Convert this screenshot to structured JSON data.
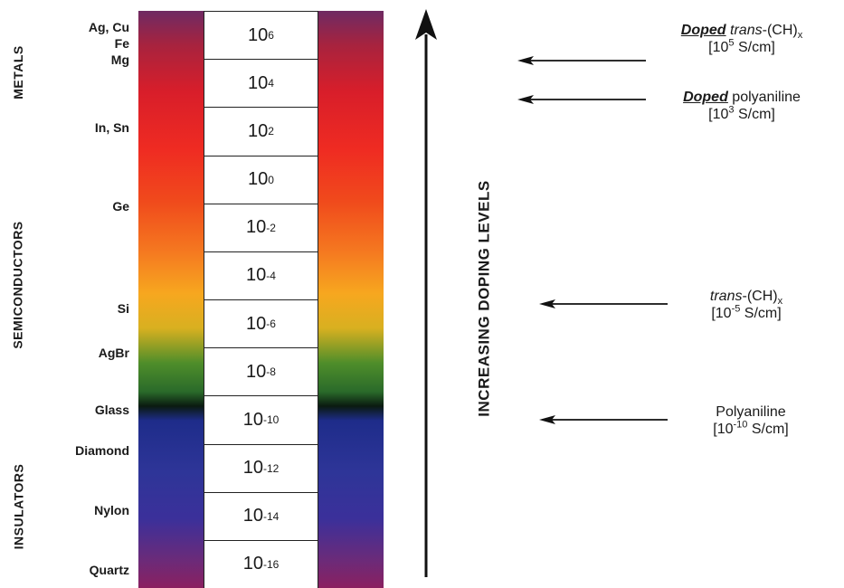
{
  "categories": [
    {
      "id": "metals",
      "label": "METALS"
    },
    {
      "id": "semiconductors",
      "label": "SEMICONDUCTORS"
    },
    {
      "id": "insulators",
      "label": "INSULATORS"
    }
  ],
  "materials": [
    {
      "id": "ag-cu",
      "label": "Ag, Cu"
    },
    {
      "id": "fe",
      "label": "Fe"
    },
    {
      "id": "mg",
      "label": "Mg"
    },
    {
      "id": "in-sn",
      "label": "In, Sn"
    },
    {
      "id": "ge",
      "label": "Ge"
    },
    {
      "id": "si",
      "label": "Si"
    },
    {
      "id": "agbr",
      "label": "AgBr"
    },
    {
      "id": "glass",
      "label": "Glass"
    },
    {
      "id": "diamond",
      "label": "Diamond"
    },
    {
      "id": "nylon",
      "label": "Nylon"
    },
    {
      "id": "quartz",
      "label": "Quartz"
    }
  ],
  "scale": {
    "base": "10",
    "exponents": [
      "6",
      "4",
      "2",
      "0",
      "-2",
      "-4",
      "-6",
      "-8",
      "-10",
      "-12",
      "-14",
      "-16"
    ]
  },
  "doping_axis_label": "INCREASING DOPING LEVELS",
  "annotations": {
    "doped_trans_ch": {
      "doped": "Doped",
      "name": "trans",
      "formula": "-(CH)",
      "subscript": "x",
      "value_open": "[10",
      "value_exp": "5",
      "value_unit": " S/cm]"
    },
    "doped_polyaniline": {
      "doped": "Doped",
      "name": " polyaniline",
      "value_open": "[10",
      "value_exp": "3",
      "value_unit": " S/cm]"
    },
    "trans_ch": {
      "name": "trans",
      "formula": "-(CH)",
      "subscript": "x",
      "value_open": "[10",
      "value_exp": "-5",
      "value_unit": " S/cm]"
    },
    "polyaniline": {
      "name": "Polyaniline",
      "value_open": "[10",
      "value_exp": "-10",
      "value_unit": " S/cm]"
    }
  }
}
